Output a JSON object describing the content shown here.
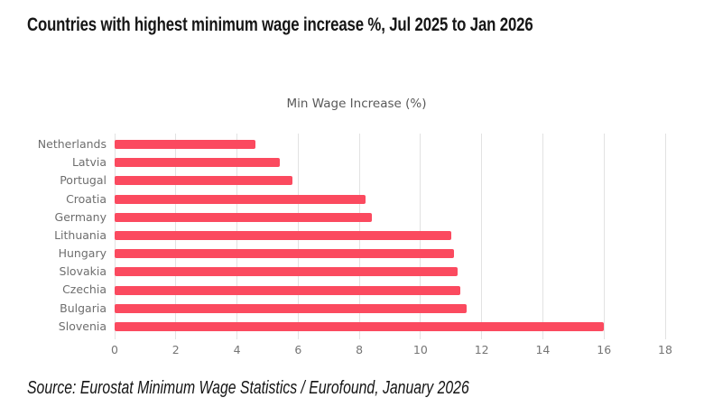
{
  "header": {
    "title": "Countries with highest minimum wage increase %, Jul 2025 to Jan 2026"
  },
  "chart_data": {
    "type": "bar",
    "orientation": "horizontal",
    "title": "Min Wage Increase (%)",
    "categories": [
      "Netherlands",
      "Latvia",
      "Portugal",
      "Croatia",
      "Germany",
      "Lithuania",
      "Hungary",
      "Slovakia",
      "Czechia",
      "Bulgaria",
      "Slovenia"
    ],
    "values": [
      4.6,
      5.4,
      5.8,
      8.2,
      8.4,
      11.0,
      11.1,
      11.2,
      11.3,
      11.5,
      16.0
    ],
    "xlabel": "",
    "ylabel": "",
    "xlim": [
      0,
      18
    ],
    "xticks": [
      0,
      2,
      4,
      6,
      8,
      10,
      12,
      14,
      16,
      18
    ],
    "grid": true,
    "legend": false,
    "colors": {
      "bar": "#fb4a5f",
      "gridline": "#e2e2e2",
      "category_label": "#6e6e6e",
      "tick_label": "#757575",
      "chart_title": "#595959"
    }
  },
  "footer": {
    "source": "Source: Eurostat Minimum Wage Statistics / Eurofound, January 2026"
  }
}
